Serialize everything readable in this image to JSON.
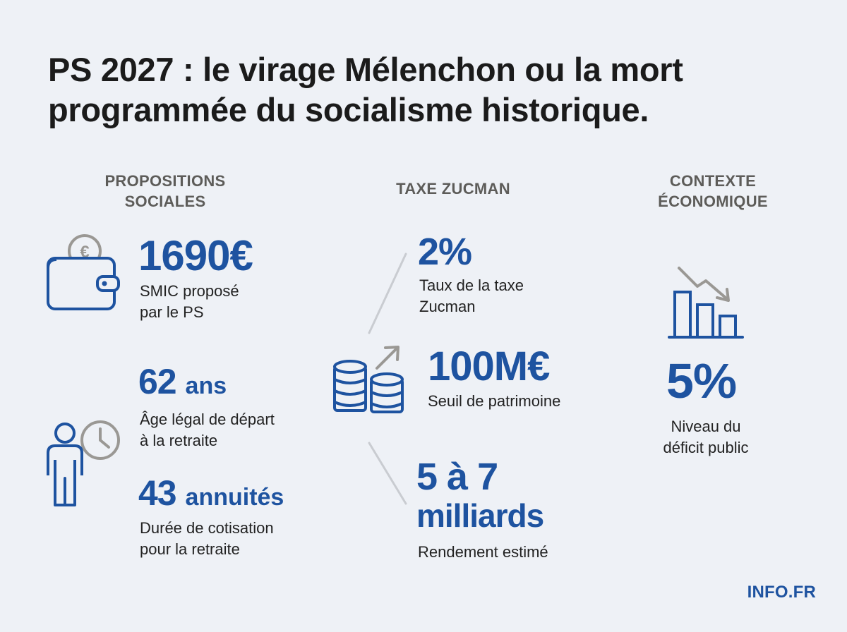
{
  "title": {
    "line1": "PS 2027 : le virage Mélenchon ou la mort",
    "line2": "programmée du socialisme historique."
  },
  "columns": {
    "social": {
      "heading_line1": "PROPOSITIONS",
      "heading_line2": "SOCIALES",
      "stats": [
        {
          "value": "1690€",
          "desc_line1": "SMIC proposé",
          "desc_line2": "par le PS",
          "icon": "wallet-euro-icon"
        },
        {
          "value": "62",
          "unit": "ans",
          "desc_line1": "Âge légal de départ",
          "desc_line2": "à la retraite",
          "icon": "person-clock-icon"
        },
        {
          "value": "43",
          "unit": "annuités",
          "desc_line1": "Durée de cotisation",
          "desc_line2": "pour la retraite"
        }
      ]
    },
    "zucman": {
      "heading": "TAXE ZUCMAN",
      "icon": "coin-stacks-icon",
      "stats": [
        {
          "value": "2%",
          "desc_line1": "Taux de la taxe",
          "desc_line2": "Zucman"
        },
        {
          "value": "100M€",
          "desc_line1": "Seuil de patrimoine"
        },
        {
          "value_line1": "5 à 7",
          "value_line2": "milliards",
          "desc_line1": "Rendement estimé"
        }
      ]
    },
    "economy": {
      "heading_line1": "CONTEXTE",
      "heading_line2": "ÉCONOMIQUE",
      "icon": "declining-bar-chart-icon",
      "stats": [
        {
          "value": "5%",
          "desc_line1": "Niveau du",
          "desc_line2": "déficit public"
        }
      ]
    }
  },
  "brand": "INFO.FR",
  "colors": {
    "background": "#eef1f6",
    "accent_blue": "#1e53a0",
    "heading_gray": "#5d5c59",
    "icon_gray": "#9a9894",
    "text": "#222222"
  }
}
